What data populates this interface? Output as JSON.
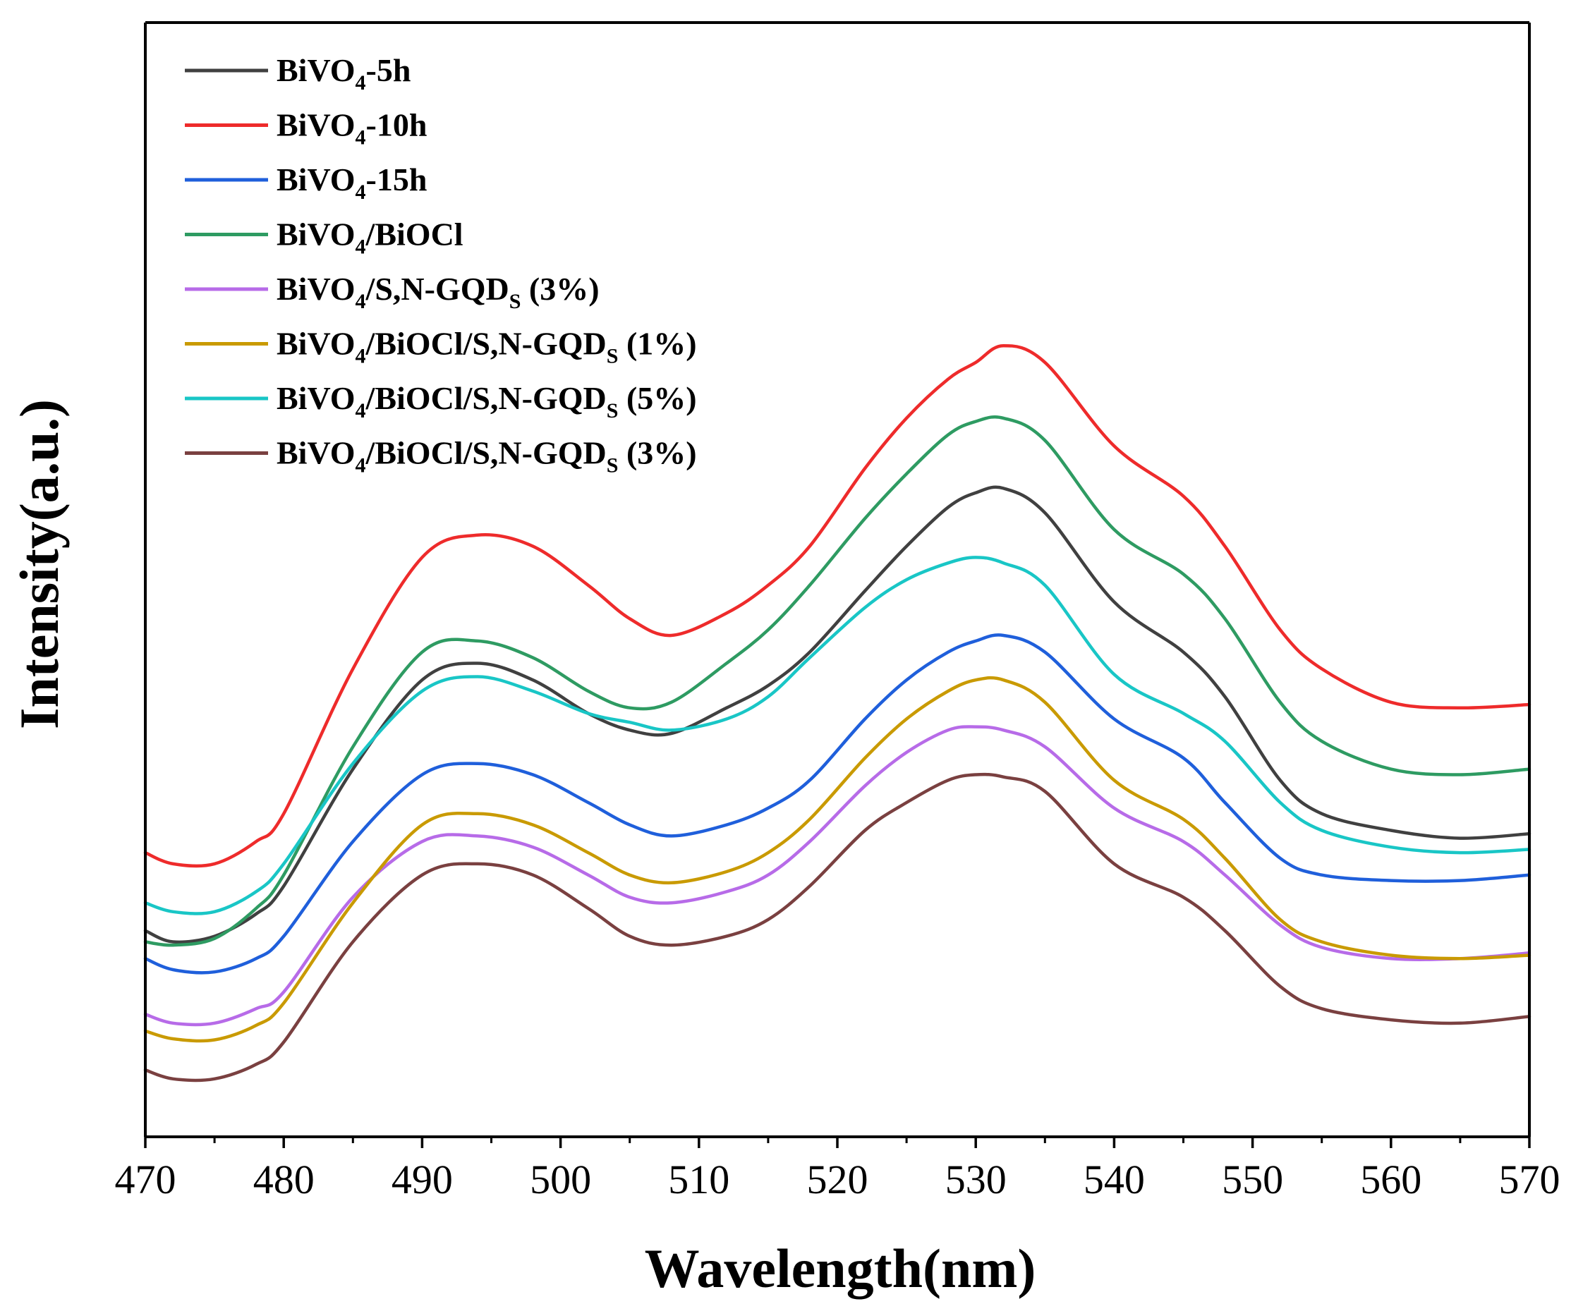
{
  "chart_data": {
    "type": "line",
    "title": "",
    "xlabel": "Wavelength(nm)",
    "ylabel": "Intensity(a.u.)",
    "xlim": [
      470,
      570
    ],
    "ylim": [
      0,
      100
    ],
    "xticks": [
      470,
      480,
      490,
      500,
      510,
      520,
      530,
      540,
      550,
      560,
      570
    ],
    "xtick_labels": [
      "470",
      "480",
      "490",
      "500",
      "510",
      "520",
      "530",
      "540",
      "550",
      "560",
      "570"
    ],
    "yticks_shown": false,
    "legend_position": "top-left",
    "x": [
      470,
      472,
      475,
      478,
      480,
      485,
      490,
      494,
      498,
      502,
      505,
      508,
      512,
      515,
      518,
      522,
      525,
      528,
      530,
      532,
      535,
      540,
      545,
      548,
      552,
      555,
      560,
      565,
      570
    ],
    "series": [
      {
        "name": "BiVO4-5h",
        "legend_parts": [
          [
            "BiVO",
            ""
          ],
          [
            "4",
            "sub"
          ],
          [
            "-5h",
            ""
          ]
        ],
        "color": "#404040",
        "values": [
          18.5,
          17.5,
          18.0,
          20.0,
          22.5,
          33.0,
          41.0,
          42.5,
          41.0,
          38.0,
          36.5,
          36.2,
          38.5,
          40.5,
          43.5,
          49.0,
          53.0,
          56.5,
          57.8,
          58.2,
          56.0,
          48.0,
          43.5,
          39.5,
          32.0,
          29.0,
          27.5,
          26.8,
          27.2
        ]
      },
      {
        "name": "BiVO4-10h",
        "legend_parts": [
          [
            "BiVO",
            ""
          ],
          [
            "4",
            "sub"
          ],
          [
            "-10h",
            ""
          ]
        ],
        "color": "#ee2b2b",
        "values": [
          25.5,
          24.5,
          24.5,
          26.5,
          29.0,
          42.0,
          52.0,
          54.0,
          53.0,
          49.5,
          46.5,
          45.0,
          47.0,
          49.5,
          53.0,
          60.0,
          64.5,
          68.0,
          69.5,
          71.0,
          69.5,
          62.0,
          57.5,
          53.0,
          45.5,
          42.0,
          39.0,
          38.5,
          38.8
        ]
      },
      {
        "name": "BiVO4-15h",
        "legend_parts": [
          [
            "BiVO",
            ""
          ],
          [
            "4",
            "sub"
          ],
          [
            "-15h",
            ""
          ]
        ],
        "color": "#1f5fdb",
        "values": [
          16.0,
          15.0,
          14.8,
          16.0,
          18.0,
          26.5,
          32.5,
          33.5,
          32.5,
          30.0,
          28.0,
          27.0,
          28.0,
          29.5,
          32.0,
          37.5,
          41.0,
          43.5,
          44.5,
          45.0,
          43.5,
          37.5,
          34.0,
          30.0,
          25.0,
          23.5,
          23.0,
          23.0,
          23.5
        ]
      },
      {
        "name": "BiVO4/BiOCl",
        "legend_parts": [
          [
            "BiVO",
            ""
          ],
          [
            "4",
            "sub"
          ],
          [
            "/BiOCl",
            ""
          ]
        ],
        "color": "#2e9b62",
        "values": [
          17.5,
          17.2,
          17.8,
          20.5,
          23.5,
          35.0,
          43.5,
          44.5,
          43.0,
          40.0,
          38.5,
          39.0,
          42.5,
          45.5,
          49.5,
          55.5,
          59.5,
          63.0,
          64.2,
          64.5,
          62.5,
          54.5,
          50.5,
          46.5,
          39.0,
          35.5,
          33.0,
          32.5,
          33.0
        ]
      },
      {
        "name": "BiVO4/S,N-GQDS (3%)",
        "legend_parts": [
          [
            "BiVO",
            ""
          ],
          [
            "4",
            "sub"
          ],
          [
            "/S,N-GQD",
            ""
          ],
          [
            "S",
            "sub"
          ],
          [
            " (3%)",
            ""
          ]
        ],
        "color": "#b76be8",
        "values": [
          11.0,
          10.2,
          10.2,
          11.5,
          13.0,
          21.5,
          26.5,
          27.0,
          26.0,
          23.5,
          21.5,
          21.0,
          22.0,
          23.5,
          26.5,
          31.5,
          34.5,
          36.5,
          36.8,
          36.5,
          35.0,
          29.5,
          26.5,
          23.5,
          19.0,
          17.0,
          16.0,
          16.0,
          16.5
        ]
      },
      {
        "name": "BiVO4/BiOCl/S,N-GQDS (1%)",
        "legend_parts": [
          [
            "BiVO",
            ""
          ],
          [
            "4",
            "sub"
          ],
          [
            "/BiOCl/S,N-GQD",
            ""
          ],
          [
            "S",
            "sub"
          ],
          [
            " (1%)",
            ""
          ]
        ],
        "color": "#c99a00",
        "values": [
          9.5,
          8.8,
          8.7,
          10.0,
          12.0,
          21.0,
          28.0,
          29.0,
          28.0,
          25.5,
          23.5,
          22.8,
          23.8,
          25.5,
          28.5,
          34.0,
          37.5,
          40.0,
          41.0,
          41.0,
          39.0,
          32.0,
          28.5,
          25.0,
          19.5,
          17.5,
          16.3,
          16.0,
          16.3
        ]
      },
      {
        "name": "BiVO4/BiOCl/S,N-GQDS (5%)",
        "legend_parts": [
          [
            "BiVO",
            ""
          ],
          [
            "4",
            "sub"
          ],
          [
            "/BiOCl/S,N-GQD",
            ""
          ],
          [
            "S",
            "sub"
          ],
          [
            " (5%)",
            ""
          ]
        ],
        "color": "#19c6c6",
        "values": [
          21.0,
          20.2,
          20.2,
          22.0,
          24.5,
          33.5,
          40.0,
          41.3,
          40.0,
          38.0,
          37.2,
          36.5,
          37.5,
          39.5,
          43.0,
          47.5,
          50.0,
          51.5,
          52.0,
          51.5,
          49.5,
          41.5,
          38.0,
          35.5,
          30.0,
          27.5,
          26.0,
          25.5,
          25.8
        ]
      },
      {
        "name": "BiVO4/BiOCl/S,N-GQDS (3%)",
        "legend_parts": [
          [
            "BiVO",
            ""
          ],
          [
            "4",
            "sub"
          ],
          [
            "/BiOCl/S,N-GQD",
            ""
          ],
          [
            "S",
            "sub"
          ],
          [
            " (3%)",
            ""
          ]
        ],
        "color": "#7a4040",
        "values": [
          6.0,
          5.2,
          5.2,
          6.5,
          8.5,
          17.5,
          23.5,
          24.5,
          23.5,
          20.5,
          18.0,
          17.2,
          18.0,
          19.5,
          22.5,
          27.5,
          30.0,
          32.0,
          32.5,
          32.3,
          31.0,
          24.5,
          21.5,
          18.5,
          13.5,
          11.5,
          10.5,
          10.2,
          10.8
        ]
      }
    ]
  }
}
